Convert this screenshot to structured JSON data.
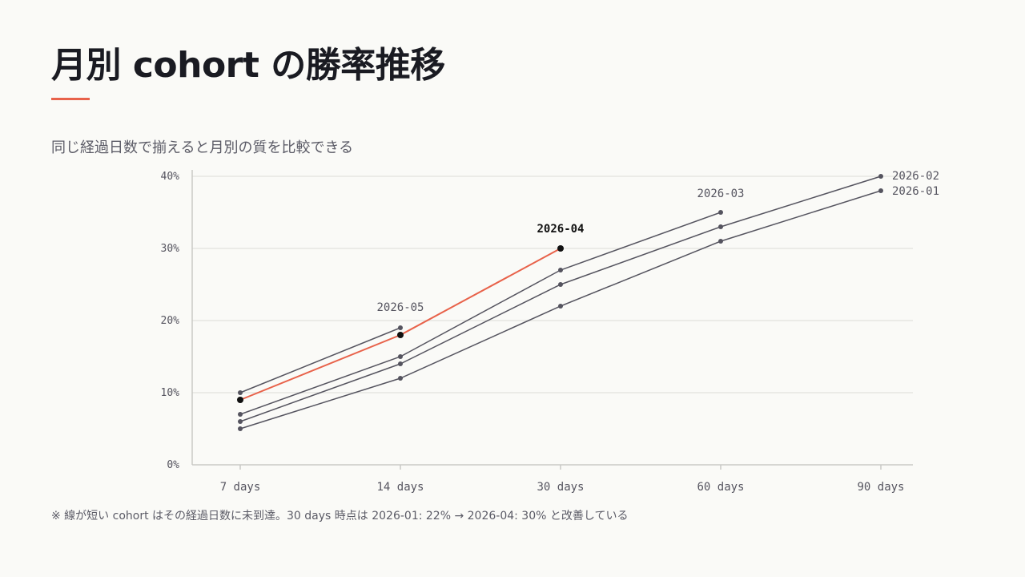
{
  "page": {
    "title": "月別 cohort の勝率推移",
    "subtitle": "同じ経過日数で揃えると月別の質を比較できる",
    "footnote": "※ 線が短い cohort はその経過日数に未到達。30 days 時点は 2026-01: 22% → 2026-04: 30% と改善している"
  },
  "colors": {
    "background": "#fafaf7",
    "title_text": "#1a1b22",
    "accent": "#e8624a",
    "series_default": "#55545f",
    "highlight_point": "#111111",
    "axis": "#c9c9c6",
    "grid": "#e6e6e2",
    "tick_text": "#55545f"
  },
  "chart_data": {
    "type": "line",
    "title": "",
    "xlabel": "",
    "ylabel": "",
    "categories": [
      "7 days",
      "14 days",
      "30 days",
      "60 days",
      "90 days"
    ],
    "ylim": [
      0,
      40
    ],
    "yticks": [
      0,
      10,
      20,
      30,
      40
    ],
    "ytick_labels": [
      "0%",
      "10%",
      "20%",
      "30%",
      "40%"
    ],
    "grid": true,
    "legend": "none (series labeled directly at line ends)",
    "highlight_series": "2026-04",
    "series": [
      {
        "name": "2026-01",
        "values": [
          5,
          12,
          22,
          31,
          38
        ]
      },
      {
        "name": "2026-02",
        "values": [
          6,
          14,
          25,
          33,
          40
        ]
      },
      {
        "name": "2026-03",
        "values": [
          7,
          15,
          27,
          35,
          null
        ]
      },
      {
        "name": "2026-04",
        "values": [
          9,
          18,
          30,
          null,
          null
        ]
      },
      {
        "name": "2026-05",
        "values": [
          10,
          19,
          null,
          null,
          null
        ]
      }
    ]
  }
}
